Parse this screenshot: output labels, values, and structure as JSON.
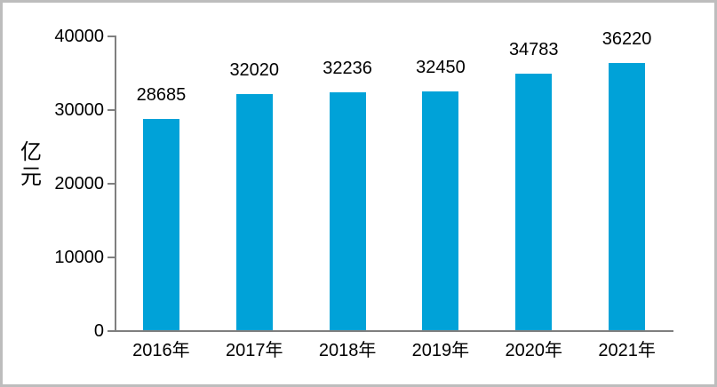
{
  "chart_data": {
    "type": "bar",
    "title": "",
    "categories": [
      "2016年",
      "2017年",
      "2018年",
      "2019年",
      "2020年",
      "2021年"
    ],
    "values": [
      28685,
      32020,
      32236,
      32450,
      34783,
      36220
    ],
    "ylabel": "亿元",
    "ylabel_display": "亿\n元",
    "ylim": [
      0,
      40000
    ],
    "yticks": [
      0,
      10000,
      20000,
      30000,
      40000
    ],
    "ytick_labels": [
      "0",
      "10000",
      "20000",
      "30000",
      "40000"
    ],
    "grid": false,
    "legend": false,
    "bar_color": "#00a2d8",
    "axis_color": "#7f7f7f",
    "text_color": "#000000",
    "frame_border_color": "#bdbdbd"
  }
}
